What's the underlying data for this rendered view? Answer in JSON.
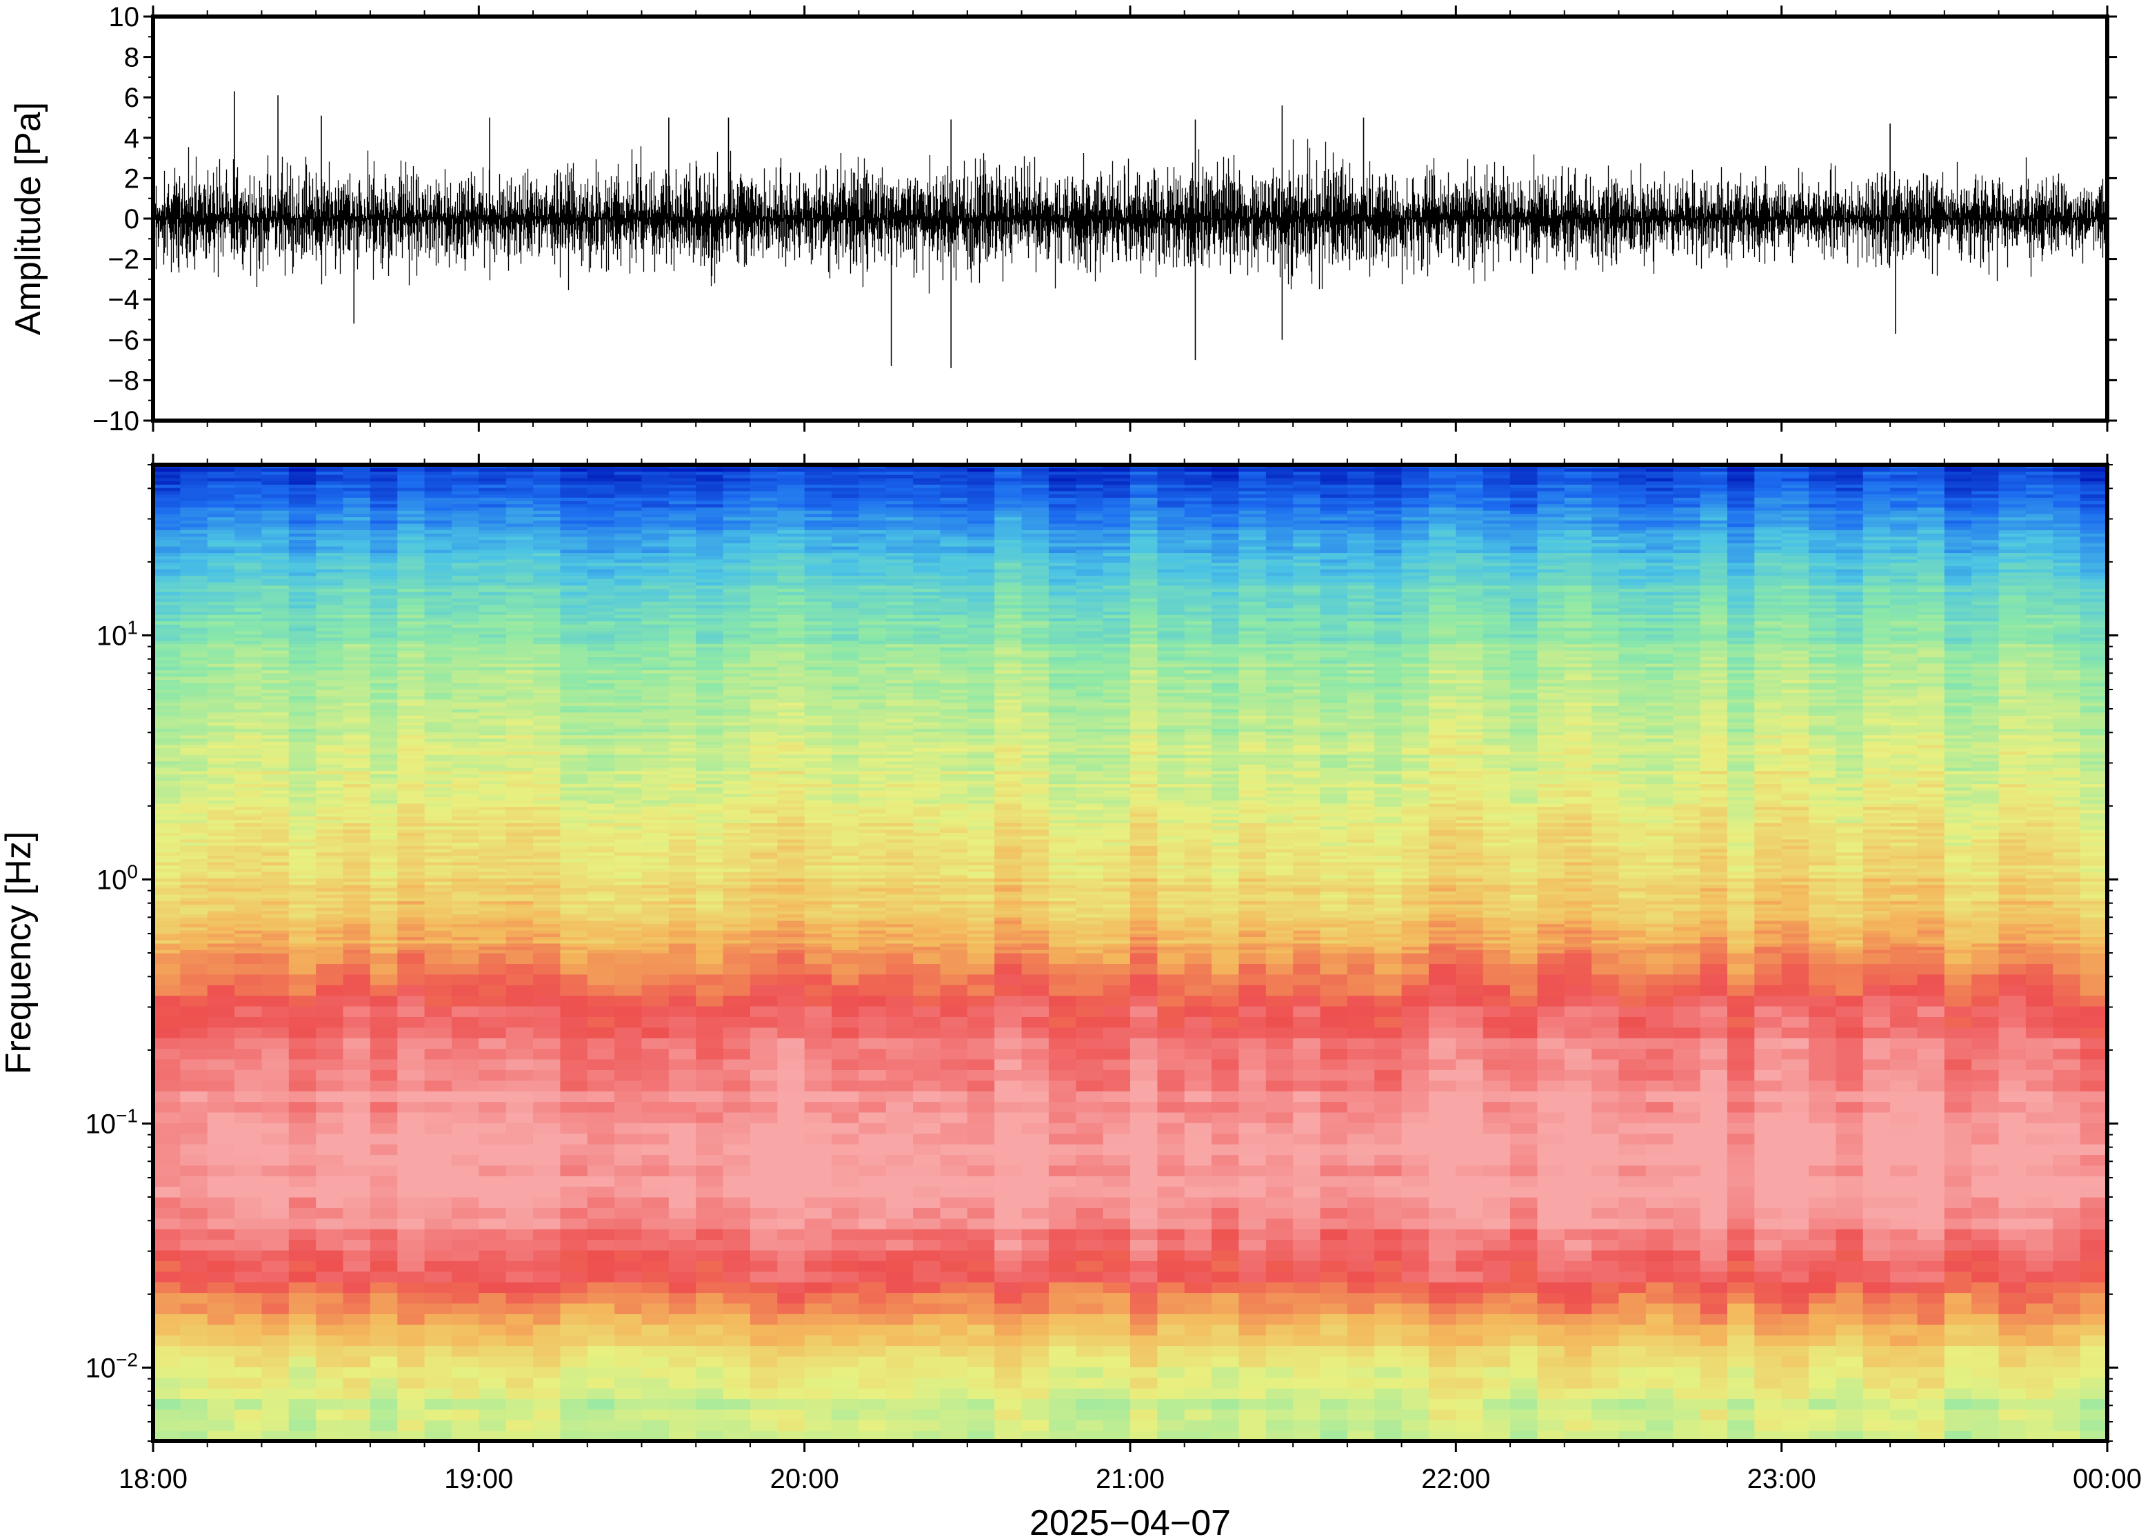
{
  "chart_data": [
    {
      "type": "line",
      "panel": "waveform",
      "title": "",
      "xlabel": "",
      "ylabel": "Amplitude [Pa]",
      "ylim": [
        -10,
        10
      ],
      "yticks": [
        10,
        8,
        6,
        4,
        2,
        0,
        -2,
        -4,
        -6,
        -8,
        -10
      ],
      "ytick_labels": [
        "10",
        "8",
        "6",
        "4",
        "2",
        "0",
        "−2",
        "−4",
        "−6",
        "−8",
        "−10"
      ],
      "xlim": [
        "2025-04-07T18:00",
        "2025-04-08T00:00"
      ],
      "grid": false,
      "series_color": "#000000",
      "envelope": {
        "x": [
          "18:00",
          "18:30",
          "19:00",
          "19:30",
          "20:00",
          "20:30",
          "21:00",
          "21:30",
          "22:00",
          "22:30",
          "23:00",
          "23:30",
          "00:00"
        ],
        "typical_half_range": [
          2.2,
          2.4,
          2.2,
          2.3,
          2.5,
          2.6,
          2.3,
          2.8,
          2.4,
          2.1,
          2.0,
          2.2,
          1.9
        ]
      },
      "peaks": [
        {
          "time": "18:15",
          "value": 6.3
        },
        {
          "time": "18:23",
          "value": 6.1
        },
        {
          "time": "18:31",
          "value": 5.1
        },
        {
          "time": "18:37",
          "value": -5.2
        },
        {
          "time": "19:02",
          "value": 5.0
        },
        {
          "time": "19:35",
          "value": 5.0
        },
        {
          "time": "19:46",
          "value": 5.0
        },
        {
          "time": "20:16",
          "value": -7.3
        },
        {
          "time": "20:27",
          "value": 4.9
        },
        {
          "time": "20:27",
          "value": -7.4
        },
        {
          "time": "21:12",
          "value": 4.9
        },
        {
          "time": "21:12",
          "value": -7.0
        },
        {
          "time": "21:28",
          "value": 5.6
        },
        {
          "time": "21:28",
          "value": -6.0
        },
        {
          "time": "21:43",
          "value": 5.0
        },
        {
          "time": "23:20",
          "value": 4.7
        },
        {
          "time": "23:21",
          "value": -5.7
        }
      ]
    },
    {
      "type": "heatmap",
      "panel": "spectrogram",
      "title": "",
      "xlabel": "2025−04−07",
      "ylabel": "Frequency [Hz]",
      "yscale": "log",
      "ylim": [
        0.005,
        50
      ],
      "yticks": [
        0.01,
        0.1,
        1,
        10
      ],
      "ytick_labels": [
        {
          "base": "10",
          "exp": "−2"
        },
        {
          "base": "10",
          "exp": "−1"
        },
        {
          "base": "10",
          "exp": "0"
        },
        {
          "base": "10",
          "exp": "1"
        }
      ],
      "xlim": [
        "2025-04-07T18:00",
        "2025-04-08T00:00"
      ],
      "xticks": [
        "18:00",
        "19:00",
        "20:00",
        "21:00",
        "22:00",
        "23:00",
        "00:00"
      ],
      "colormap_stops": [
        "#0018b8",
        "#1c6cf0",
        "#4cc4e4",
        "#8ce8a8",
        "#e8f080",
        "#f4b85c",
        "#ee5050",
        "#f8a6a6"
      ],
      "time_bins": 72,
      "power_profile": {
        "frequency_hz": [
          0.005,
          0.008,
          0.012,
          0.02,
          0.03,
          0.05,
          0.1,
          0.2,
          0.4,
          0.6,
          1,
          2,
          4,
          8,
          15,
          30,
          50
        ],
        "relative_level": [
          0.5,
          0.55,
          0.65,
          0.82,
          0.92,
          1.0,
          1.0,
          0.93,
          0.82,
          0.7,
          0.64,
          0.58,
          0.52,
          0.46,
          0.36,
          0.2,
          0.06
        ]
      },
      "grid": false
    }
  ]
}
